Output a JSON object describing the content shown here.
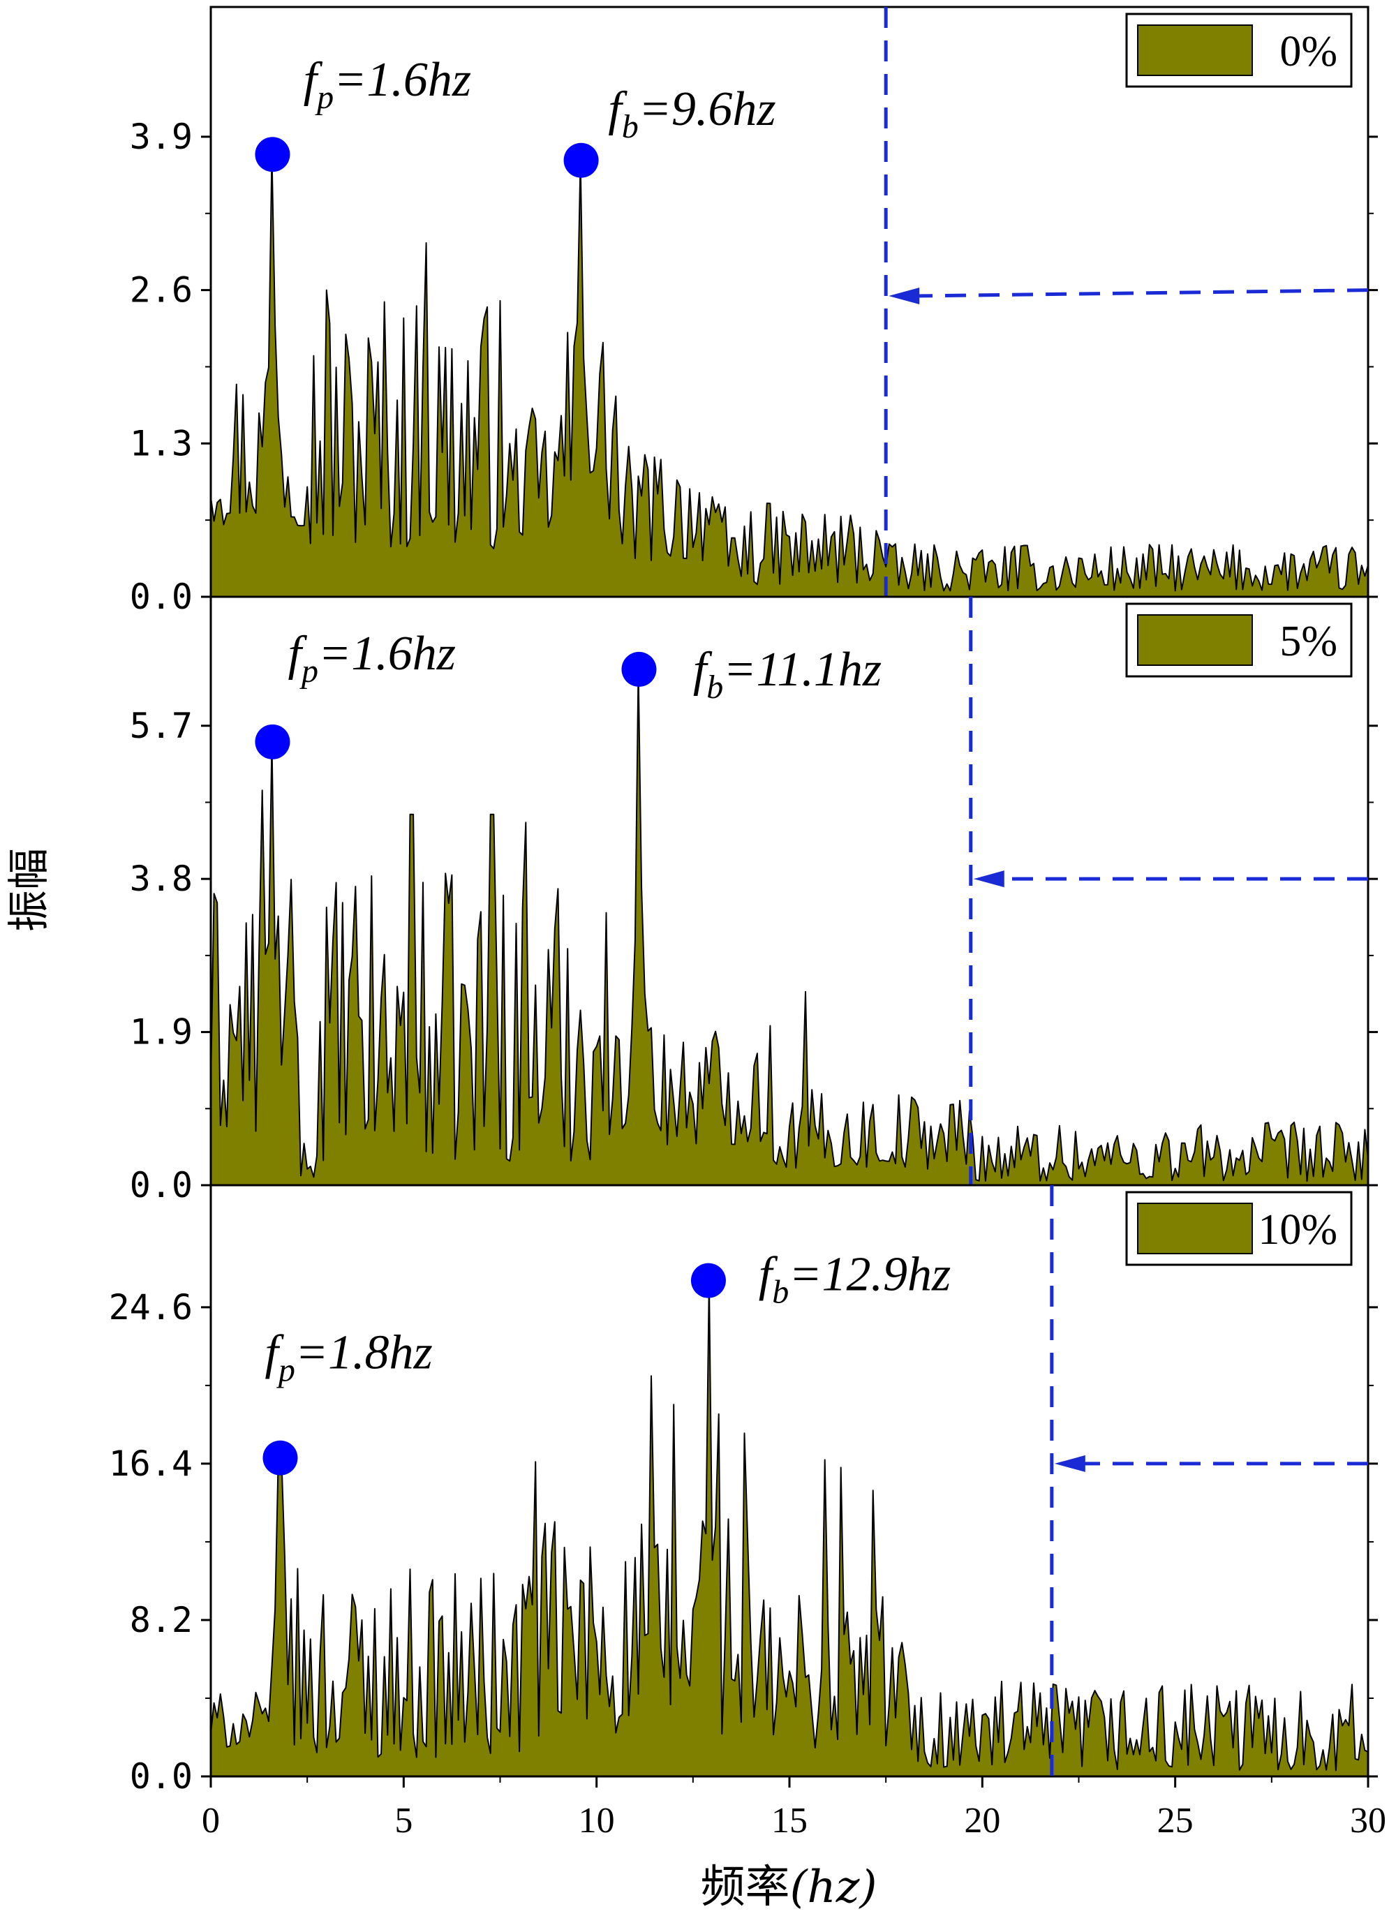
{
  "chart_data": {
    "type": "area",
    "xlabel": "频率",
    "xlabel_unit": "(hz)",
    "ylabel": "振幅",
    "xlim": [
      0,
      30
    ],
    "x_ticks": [
      0,
      5,
      10,
      15,
      20,
      25,
      30
    ],
    "x_tick_labels": [
      "0",
      "5",
      "10",
      "15",
      "20",
      "25",
      "30"
    ],
    "fill_color": "#808000",
    "marker_color": "#0000ff",
    "panels": [
      {
        "legend": "0%",
        "ylim": [
          0,
          5.0
        ],
        "y_ticks": [
          0.0,
          1.3,
          2.6,
          3.9
        ],
        "y_tick_labels": [
          "0.0",
          "1.3",
          "2.6",
          "3.9"
        ],
        "cutoff_x": 17.5,
        "arrow_y_right": 2.6,
        "arrow_y_left": 2.55,
        "peaks": [
          {
            "x": 1.6,
            "y": 3.75,
            "f": "f",
            "sub": "p",
            "rest": "=1.6hz",
            "lx": 2.4,
            "ly": 4.25
          },
          {
            "x": 9.6,
            "y": 3.7,
            "f": "f",
            "sub": "b",
            "rest": "=9.6hz",
            "lx": 10.3,
            "ly": 4.0
          }
        ],
        "segments": [
          {
            "x0": 0,
            "x1": 2.5,
            "min": 0.6,
            "max": 2.1
          },
          {
            "x0": 2.5,
            "x1": 7.5,
            "min": 0.4,
            "max": 2.6
          },
          {
            "x0": 7.5,
            "x1": 9.0,
            "min": 0.5,
            "max": 1.6
          },
          {
            "x0": 9.0,
            "x1": 10.5,
            "min": 0.6,
            "max": 2.4
          },
          {
            "x0": 10.5,
            "x1": 13.0,
            "min": 0.3,
            "max": 1.3
          },
          {
            "x0": 13.0,
            "x1": 17.5,
            "min": 0.1,
            "max": 0.8
          },
          {
            "x0": 17.5,
            "x1": 30.0,
            "min": 0.05,
            "max": 0.45
          }
        ],
        "spikes": [
          {
            "x": 5.6,
            "y": 3.0
          },
          {
            "x": 3.0,
            "y": 2.6
          },
          {
            "x": 4.5,
            "y": 2.5
          }
        ]
      },
      {
        "legend": "5%",
        "ylim": [
          0,
          7.3
        ],
        "y_ticks": [
          0.0,
          1.9,
          3.8,
          5.7
        ],
        "y_tick_labels": [
          "0.0",
          "1.9",
          "3.8",
          "5.7"
        ],
        "cutoff_x": 19.7,
        "arrow_y_right": 3.8,
        "arrow_y_left": 3.8,
        "peaks": [
          {
            "x": 1.6,
            "y": 5.5,
            "f": "f",
            "sub": "p",
            "rest": "=1.6hz",
            "lx": 2.0,
            "ly": 6.4
          },
          {
            "x": 11.1,
            "y": 6.4,
            "f": "f",
            "sub": "b",
            "rest": "=11.1hz",
            "lx": 12.5,
            "ly": 6.2
          }
        ],
        "segments": [
          {
            "x0": 0,
            "x1": 2.3,
            "min": 0.6,
            "max": 3.8
          },
          {
            "x0": 2.3,
            "x1": 2.8,
            "min": 0.1,
            "max": 0.6
          },
          {
            "x0": 2.8,
            "x1": 10.3,
            "min": 0.3,
            "max": 3.9
          },
          {
            "x0": 10.3,
            "x1": 14.5,
            "min": 0.5,
            "max": 2.1
          },
          {
            "x0": 14.5,
            "x1": 19.7,
            "min": 0.2,
            "max": 1.2
          },
          {
            "x0": 19.7,
            "x1": 30.0,
            "min": 0.05,
            "max": 0.8
          }
        ],
        "spikes": [
          {
            "x": 5.2,
            "y": 4.6
          },
          {
            "x": 7.3,
            "y": 4.6
          },
          {
            "x": 8.2,
            "y": 4.5
          },
          {
            "x": 1.3,
            "y": 4.9
          },
          {
            "x": 15.4,
            "y": 2.4
          }
        ]
      },
      {
        "legend": "10%",
        "ylim": [
          0,
          31.0
        ],
        "y_ticks": [
          0.0,
          8.2,
          16.4,
          24.6
        ],
        "y_tick_labels": [
          "0.0",
          "8.2",
          "16.4",
          "24.6"
        ],
        "cutoff_x": 21.8,
        "arrow_y_right": 16.4,
        "arrow_y_left": 16.4,
        "peaks": [
          {
            "x": 1.8,
            "y": 16.7,
            "f": "f",
            "sub": "p",
            "rest": "=1.8hz",
            "lx": 1.4,
            "ly": 21.4
          },
          {
            "x": 12.9,
            "y": 26.0,
            "f": "f",
            "sub": "b",
            "rest": "=12.9hz",
            "lx": 14.2,
            "ly": 25.5
          }
        ],
        "segments": [
          {
            "x0": 0,
            "x1": 1.6,
            "min": 1.5,
            "max": 4.5
          },
          {
            "x0": 1.6,
            "x1": 8.0,
            "min": 1.0,
            "max": 11.0
          },
          {
            "x0": 8.0,
            "x1": 14.0,
            "min": 2.0,
            "max": 14.0
          },
          {
            "x0": 14.0,
            "x1": 18.0,
            "min": 1.5,
            "max": 10.0
          },
          {
            "x0": 18.0,
            "x1": 30.0,
            "min": 0.3,
            "max": 5.0
          }
        ],
        "spikes": [
          {
            "x": 8.4,
            "y": 16.5
          },
          {
            "x": 11.4,
            "y": 21.0
          },
          {
            "x": 12.0,
            "y": 19.5
          },
          {
            "x": 13.2,
            "y": 19.0
          },
          {
            "x": 13.8,
            "y": 18.0
          },
          {
            "x": 15.9,
            "y": 16.6
          },
          {
            "x": 16.3,
            "y": 16.2
          },
          {
            "x": 17.2,
            "y": 15.0
          }
        ]
      }
    ]
  }
}
